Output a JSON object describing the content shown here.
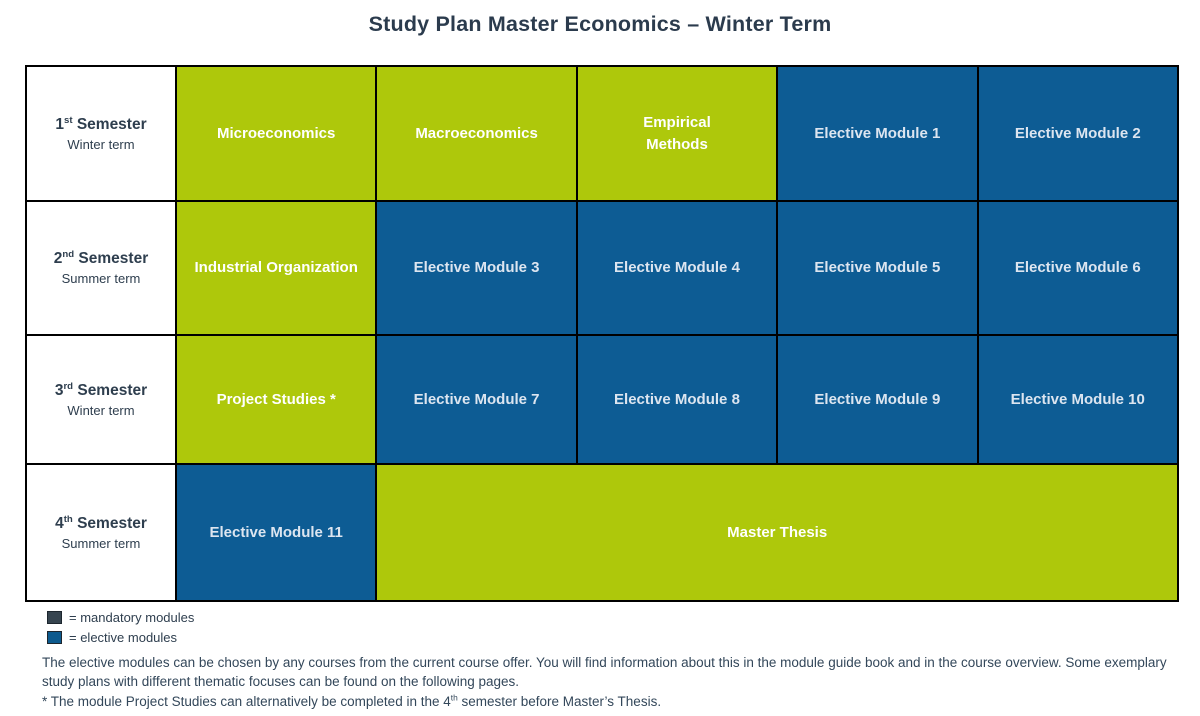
{
  "page": {
    "title": "Study Plan Master Economics – Winter Term"
  },
  "colors": {
    "mandatory_bg": "#AEC80B",
    "elective_bg": "#0D5C94",
    "title_text": "#2B3B4D",
    "body_text": "#33475A",
    "legend_mandatory_swatch": "#36444F",
    "legend_elective_swatch": "#0D5A8E",
    "border": "#000000"
  },
  "plan": {
    "rows": [
      {
        "ordinal": "1",
        "suffix": "st",
        "word": " Semester",
        "term": "Winter term",
        "cells": [
          {
            "label": "Microeconomics",
            "type": "mandatory"
          },
          {
            "label": "Macroeconomics",
            "type": "mandatory"
          },
          {
            "label": "Empirical\nMethods",
            "type": "mandatory"
          },
          {
            "label": "Elective Module 1",
            "type": "elective"
          },
          {
            "label": "Elective Module 2",
            "type": "elective"
          }
        ]
      },
      {
        "ordinal": "2",
        "suffix": "nd",
        "word": " Semester",
        "term": "Summer term",
        "cells": [
          {
            "label": "Industrial Organization",
            "type": "mandatory"
          },
          {
            "label": "Elective Module 3",
            "type": "elective"
          },
          {
            "label": "Elective Module 4",
            "type": "elective"
          },
          {
            "label": "Elective Module 5",
            "type": "elective"
          },
          {
            "label": "Elective Module 6",
            "type": "elective"
          }
        ]
      },
      {
        "ordinal": "3",
        "suffix": "rd",
        "word": " Semester",
        "term": "Winter term",
        "cells": [
          {
            "label": "Project Studies *",
            "type": "mandatory"
          },
          {
            "label": "Elective Module 7",
            "type": "elective"
          },
          {
            "label": "Elective Module 8",
            "type": "elective"
          },
          {
            "label": "Elective Module 9",
            "type": "elective"
          },
          {
            "label": "Elective Module 10",
            "type": "elective"
          }
        ]
      },
      {
        "ordinal": "4",
        "suffix": "th",
        "word": " Semester",
        "term": "Summer term",
        "cells": [
          {
            "label": "Elective Module 11",
            "type": "elective"
          },
          {
            "label": "Master Thesis",
            "type": "mandatory",
            "colspan": 4
          }
        ]
      }
    ]
  },
  "legend": {
    "mandatory_label": "= mandatory modules",
    "elective_label": "= elective modules"
  },
  "notes": {
    "paragraph": "The elective modules can be chosen by any courses from the current course offer. You will find information about this in the module guide book and in the course overview. Some exemplary study plans with different thematic focuses can be found on the following pages.",
    "footnote_pre": "* The module Project Studies can alternatively be completed in the 4",
    "footnote_sup": "th",
    "footnote_post": " semester before Master’s Thesis."
  }
}
